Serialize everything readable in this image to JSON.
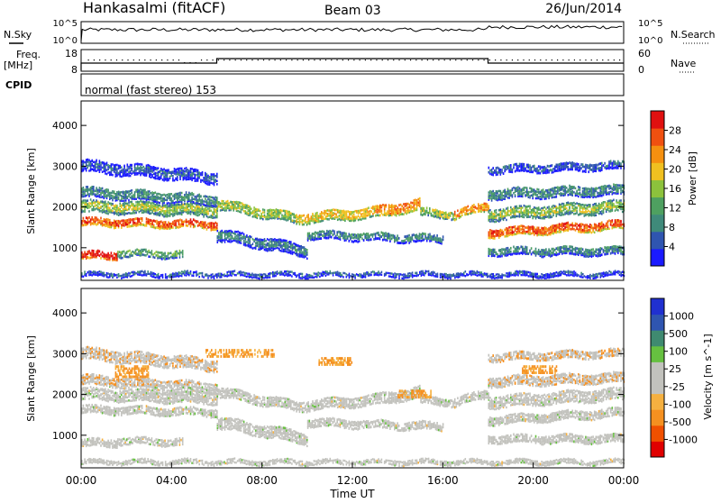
{
  "header": {
    "station": "Hankasalmi (fitACF)",
    "beam": "Beam 03",
    "date": "26/Jun/2014"
  },
  "meta_panels": {
    "nsky_label": "N.Sky",
    "nsky_ticks": [
      "10^5",
      "10^0"
    ],
    "nsearch_label": "N.Search",
    "nsearch_ticks": [
      "10^5",
      "10^0"
    ],
    "freq_label": "Freq.",
    "freq_unit": "[MHz]",
    "freq_ticks": [
      "18",
      "8"
    ],
    "nave_label": "Nave",
    "nave_ticks": [
      "60",
      "0"
    ],
    "cpid_label": "CPID",
    "cpid_text": "normal (fast stereo) 153"
  },
  "colors": {
    "power_scale": [
      "#1a1aff",
      "#2f55b0",
      "#3f8a7a",
      "#4ea060",
      "#8cc23c",
      "#f0c020",
      "#f59010",
      "#f05010",
      "#e01010"
    ],
    "velocity_scale": [
      "#e00000",
      "#f05000",
      "#f59020",
      "#f5b040",
      "#c2c2bd",
      "#c2c2bd",
      "#66c040",
      "#3f8a70",
      "#2f55b0",
      "#2030d0"
    ]
  },
  "chart_data": [
    {
      "type": "heatmap",
      "name": "power",
      "ylabel": "Slant Range [km]",
      "yticks": [
        "1000",
        "2000",
        "3000",
        "4000"
      ],
      "ylim": [
        200,
        4600
      ],
      "colorbar_label": "Power [dB]",
      "colorbar_ticks": [
        "4",
        "8",
        "12",
        "16",
        "20",
        "24",
        "28"
      ],
      "colorbar_range": [
        0,
        32
      ]
    },
    {
      "type": "heatmap",
      "name": "velocity",
      "ylabel": "Slant Range [km]",
      "yticks": [
        "1000",
        "2000",
        "3000",
        "4000"
      ],
      "ylim": [
        200,
        4600
      ],
      "colorbar_label": "Velocity [m s^-1]",
      "colorbar_ticks": [
        "-1000",
        "-500",
        "-100",
        "-25",
        "25",
        "100",
        "500",
        "1000"
      ]
    }
  ],
  "xaxis": {
    "label": "Time UT",
    "ticks": [
      "00:00",
      "04:00",
      "08:00",
      "12:00",
      "16:00",
      "20:00",
      "00:00"
    ],
    "range_hours": [
      0,
      24
    ]
  }
}
